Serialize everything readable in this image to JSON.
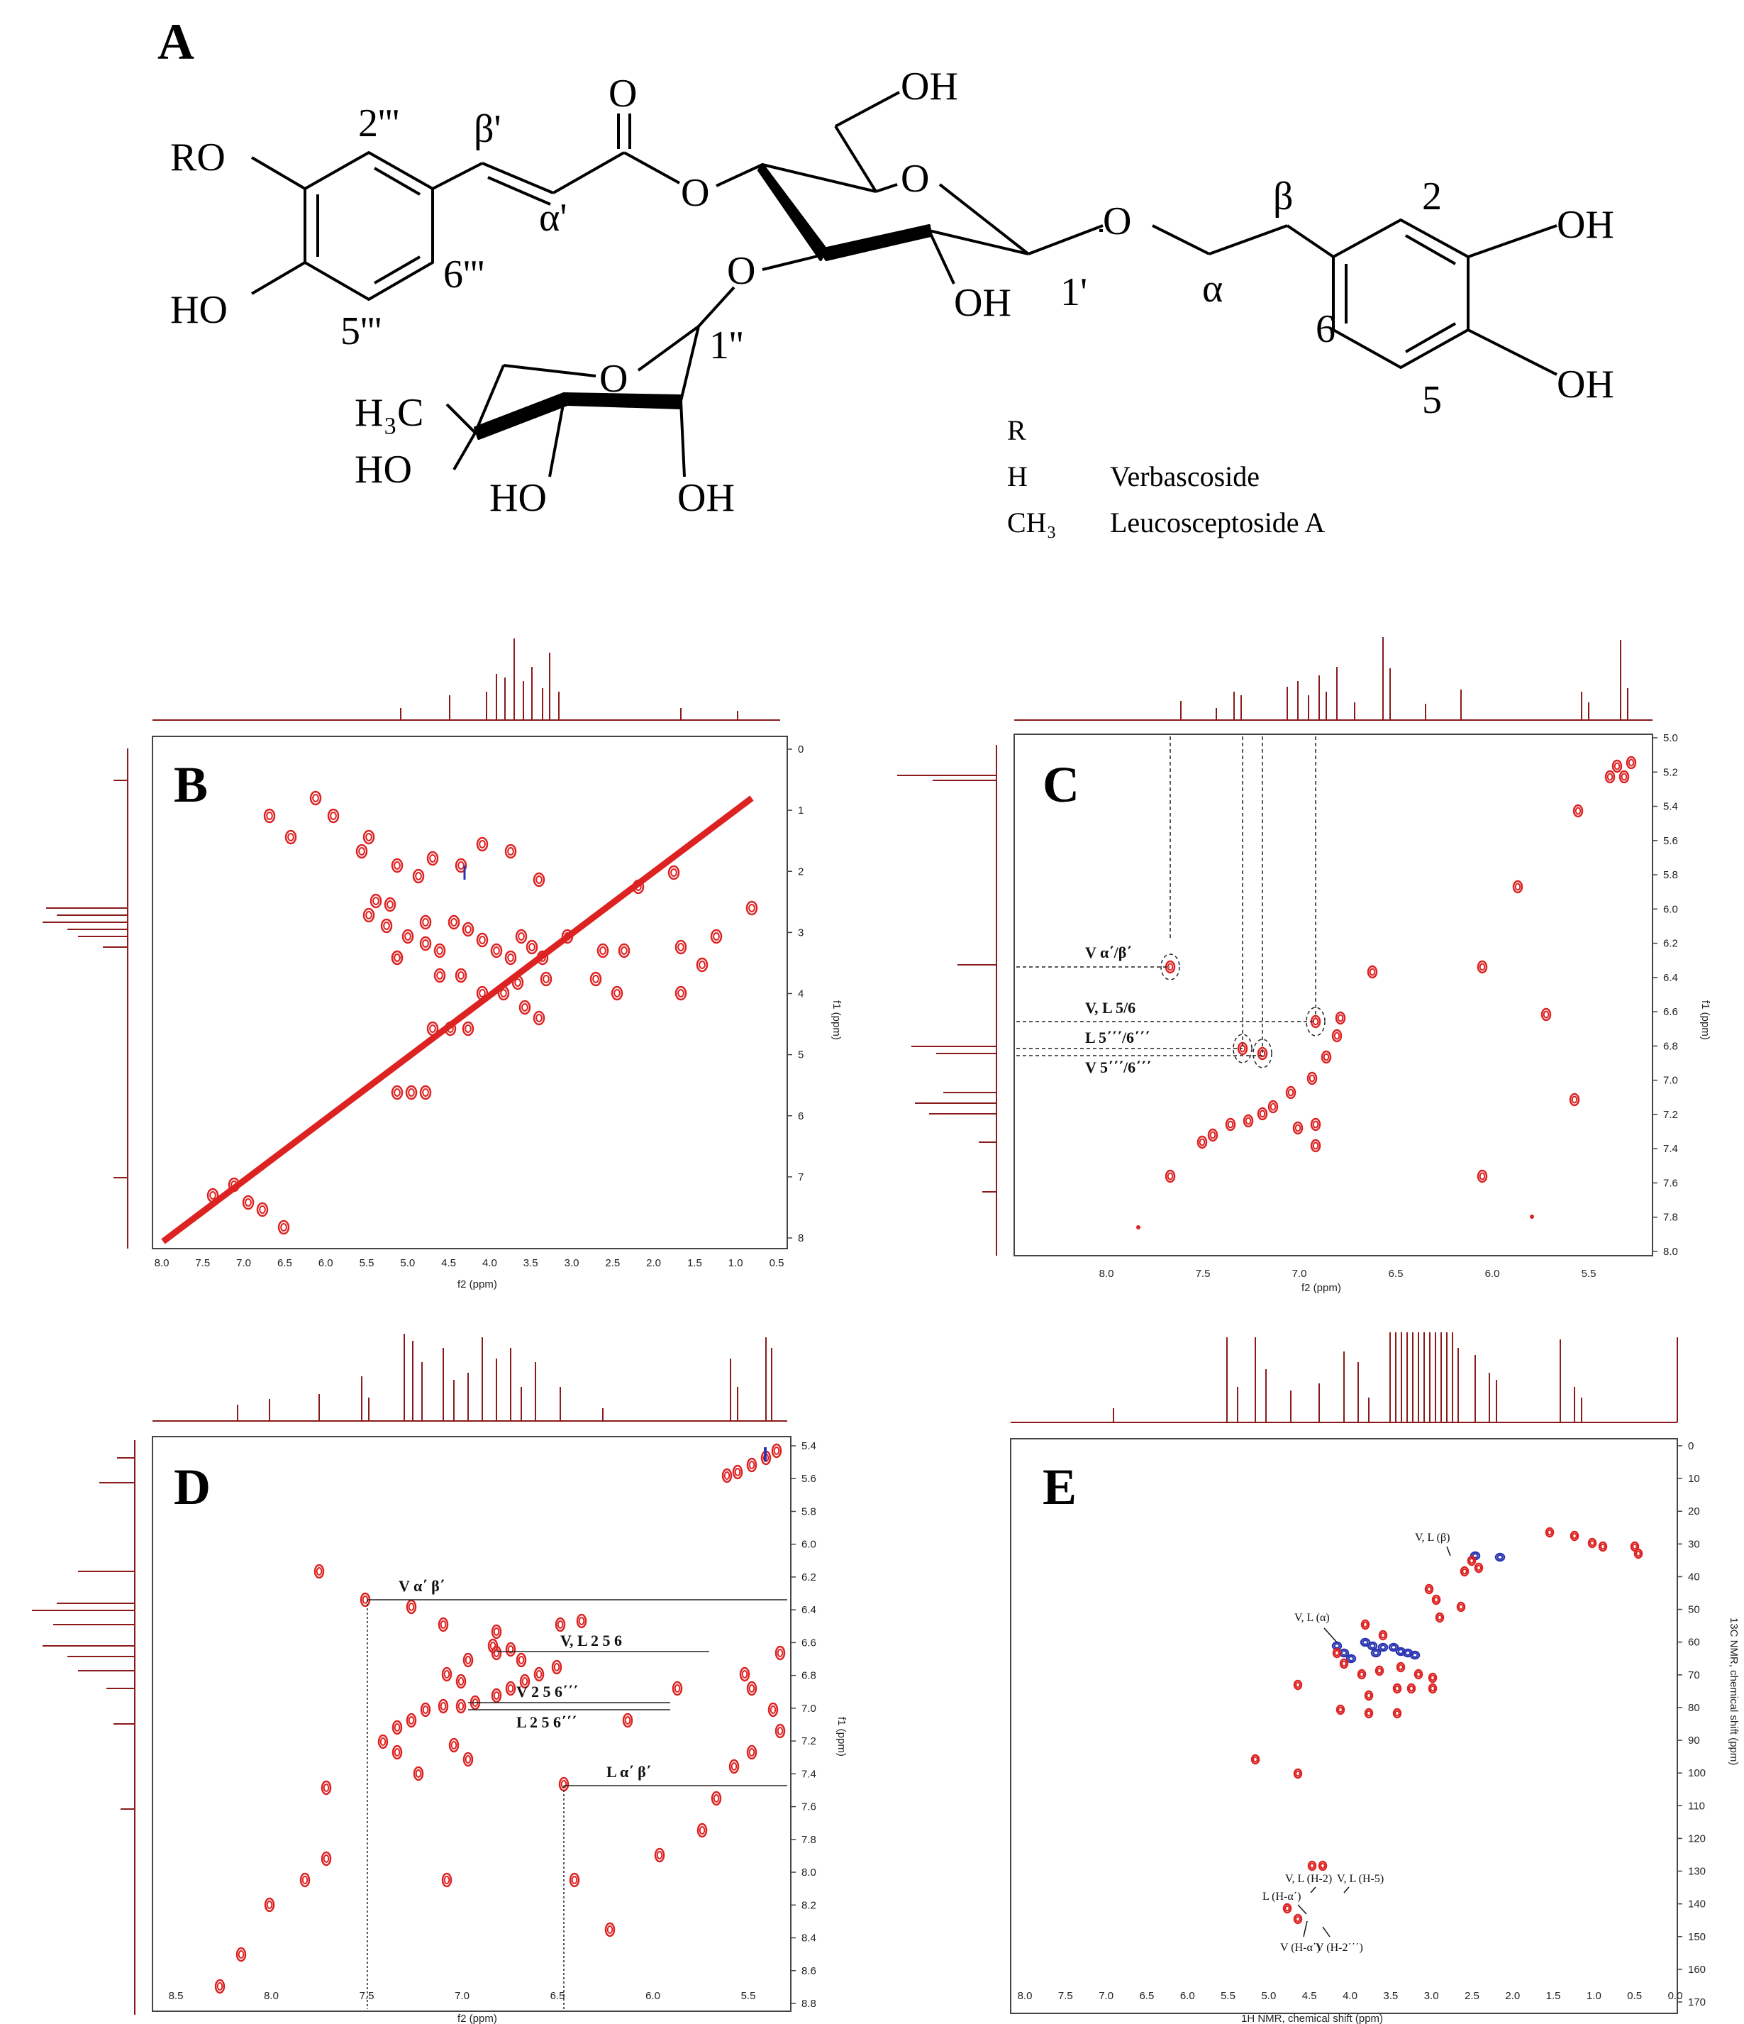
{
  "panelA": {
    "letter": "A",
    "labels": {
      "RO": "RO",
      "HO_left": "HO",
      "C2": "2'''",
      "C5": "5'''",
      "C6": "6'''",
      "beta_p": "β'",
      "alpha_p": "α'",
      "O_carbonyl": "O",
      "O_ester": "O",
      "OH_top": "OH",
      "O_ring": "O",
      "O_glyc": "O",
      "OH_glc": "OH",
      "one_p": "1'",
      "beta": "β",
      "alpha": "α",
      "two": "2",
      "six": "6",
      "five": "5",
      "OH_r1": "OH",
      "OH_r2": "OH",
      "O_rha_link": "O",
      "one_pp": "1''",
      "H3C": "H₃C",
      "O_rha": "O",
      "HO_1": "HO",
      "HO_2": "HO",
      "OH_rha": "OH"
    },
    "table": {
      "header": "R",
      "rows": [
        {
          "r": "H",
          "name": "Verbascoside"
        },
        {
          "r": "CH₃",
          "name": "Leucosceptoside A"
        }
      ]
    }
  },
  "panelB": {
    "letter": "B",
    "xlabel": "f2 (ppm)",
    "ylabel": "f1 (ppm)",
    "xticks": [
      "8.0",
      "7.5",
      "7.0",
      "6.5",
      "6.0",
      "5.5",
      "5.0",
      "4.5",
      "4.0",
      "3.5",
      "3.0",
      "2.5",
      "2.0",
      "1.5",
      "1.0",
      "0.5"
    ],
    "yticks": [
      "0",
      "1",
      "2",
      "3",
      "4",
      "5",
      "6",
      "7",
      "8"
    ]
  },
  "panelC": {
    "letter": "C",
    "xlabel": "f2 (ppm)",
    "ylabel": "f1 (ppm)",
    "xticks": [
      "8.0",
      "7.5",
      "7.0",
      "6.5",
      "6.0",
      "5.5"
    ],
    "yticks": [
      "5.0",
      "5.2",
      "5.4",
      "5.6",
      "5.8",
      "6.0",
      "6.2",
      "6.4",
      "6.6",
      "6.8",
      "7.0",
      "7.2",
      "7.4",
      "7.6",
      "7.8",
      "8.0"
    ],
    "annotations": [
      "V α΄/β΄",
      "V, L 5/6",
      "L 5΄΄΄/6΄΄΄",
      "V 5΄΄΄/6΄΄΄"
    ]
  },
  "panelD": {
    "letter": "D",
    "xlabel": "f2 (ppm)",
    "ylabel": "f1 (ppm)",
    "xticks": [
      "8.5",
      "8.0",
      "7.5",
      "7.0",
      "6.5",
      "6.0",
      "5.5"
    ],
    "yticks": [
      "5.4",
      "5.6",
      "5.8",
      "6.0",
      "6.2",
      "6.4",
      "6.6",
      "6.8",
      "7.0",
      "7.2",
      "7.4",
      "7.6",
      "7.8",
      "8.0",
      "8.2",
      "8.4",
      "8.6",
      "8.8"
    ],
    "annotations": [
      "V α΄ β΄",
      "V, L 2 5 6",
      "V 2 5 6΄΄΄",
      "L 2 5 6΄΄΄",
      "L α΄ β΄"
    ]
  },
  "panelE": {
    "letter": "E",
    "xlabel": "1H NMR, chemical shift (ppm)",
    "ylabel": "13C NMR, chemical shift (ppm)",
    "xticks": [
      "8.0",
      "7.5",
      "7.0",
      "6.5",
      "6.0",
      "5.5",
      "5.0",
      "4.5",
      "4.0",
      "3.5",
      "3.0",
      "2.5",
      "2.0",
      "1.5",
      "1.0",
      "0.5",
      "0.0"
    ],
    "yticks": [
      "0",
      "10",
      "20",
      "30",
      "40",
      "50",
      "60",
      "70",
      "80",
      "90",
      "100",
      "110",
      "120",
      "130",
      "140",
      "150",
      "160",
      "170"
    ],
    "annotations": [
      "V, L (β)",
      "V, L (α)",
      "V, L (H-2)",
      "V, L (H-5)",
      "L (H-α΄)",
      "V (H-α΄)",
      "V (H-2΄΄΄)"
    ]
  },
  "colors": {
    "spectrum": "#8b1a1a",
    "positive": "#dd2222",
    "negative": "#2a35b0",
    "frame": "#444444"
  }
}
